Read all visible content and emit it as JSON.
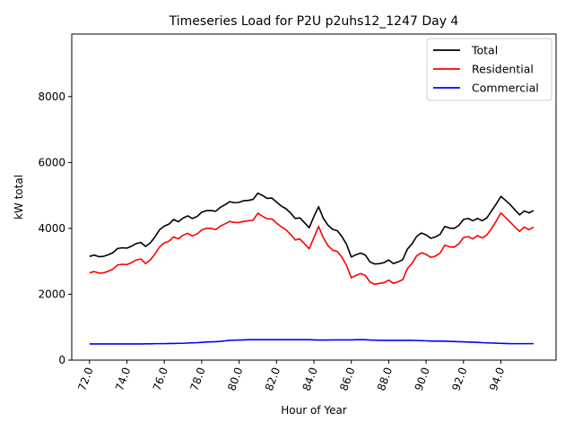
{
  "chart_data": {
    "type": "line",
    "title": "Timeseries Load for P2U p2uhs12_1247  Day 4",
    "xlabel": "Hour of Year",
    "ylabel": "kW total",
    "xlim": [
      71.05,
      96.95
    ],
    "ylim": [
      0,
      9900
    ],
    "xticks": [
      72,
      74,
      76,
      78,
      80,
      82,
      84,
      86,
      88,
      90,
      92,
      94
    ],
    "xtick_labels": [
      "72.0",
      "74.0",
      "76.0",
      "78.0",
      "80.0",
      "82.0",
      "84.0",
      "86.0",
      "88.0",
      "90.0",
      "92.0",
      "94.0"
    ],
    "yticks": [
      0,
      2000,
      4000,
      6000,
      8000
    ],
    "ytick_labels": [
      "0",
      "2000",
      "4000",
      "6000",
      "8000"
    ],
    "grid": false,
    "legend_position": "top-right",
    "x_start": 72.0,
    "x_step": 0.25,
    "series": [
      {
        "name": "Total",
        "color": "#000000",
        "values": [
          3150,
          3190,
          3140,
          3150,
          3200,
          3260,
          3390,
          3410,
          3400,
          3460,
          3540,
          3570,
          3450,
          3560,
          3740,
          3960,
          4070,
          4130,
          4270,
          4200,
          4310,
          4380,
          4300,
          4360,
          4490,
          4540,
          4540,
          4520,
          4640,
          4720,
          4810,
          4780,
          4790,
          4840,
          4850,
          4880,
          5070,
          5000,
          4910,
          4920,
          4800,
          4680,
          4600,
          4470,
          4300,
          4320,
          4170,
          4020,
          4360,
          4660,
          4310,
          4100,
          3970,
          3930,
          3750,
          3510,
          3130,
          3200,
          3250,
          3190,
          2980,
          2920,
          2930,
          2960,
          3040,
          2930,
          2980,
          3050,
          3370,
          3530,
          3760,
          3860,
          3800,
          3700,
          3740,
          3820,
          4060,
          4010,
          4000,
          4090,
          4270,
          4300,
          4230,
          4300,
          4230,
          4320,
          4530,
          4740,
          4970,
          4850,
          4720,
          4560,
          4410,
          4530,
          4470,
          4540
        ]
      },
      {
        "name": "Residential",
        "color": "#ff0000",
        "values": [
          2650,
          2690,
          2640,
          2650,
          2700,
          2760,
          2890,
          2910,
          2900,
          2960,
          3040,
          3070,
          2930,
          3040,
          3220,
          3440,
          3560,
          3610,
          3740,
          3680,
          3790,
          3850,
          3770,
          3830,
          3950,
          4000,
          4000,
          3960,
          4070,
          4140,
          4210,
          4180,
          4180,
          4210,
          4230,
          4250,
          4460,
          4370,
          4290,
          4290,
          4160,
          4050,
          3960,
          3820,
          3650,
          3680,
          3530,
          3380,
          3720,
          4060,
          3720,
          3480,
          3340,
          3300,
          3120,
          2870,
          2500,
          2570,
          2630,
          2570,
          2370,
          2300,
          2330,
          2350,
          2430,
          2330,
          2380,
          2440,
          2780,
          2940,
          3170,
          3260,
          3210,
          3120,
          3160,
          3250,
          3490,
          3440,
          3430,
          3530,
          3720,
          3750,
          3680,
          3780,
          3710,
          3800,
          4000,
          4220,
          4470,
          4330,
          4190,
          4040,
          3910,
          4040,
          3960,
          4040
        ]
      },
      {
        "name": "Commercial",
        "color": "#0000ff",
        "values": [
          490,
          490,
          490,
          490,
          490,
          490,
          490,
          490,
          490,
          490,
          490,
          490,
          495,
          495,
          500,
          500,
          500,
          505,
          505,
          510,
          510,
          520,
          525,
          530,
          540,
          550,
          555,
          560,
          570,
          585,
          600,
          605,
          610,
          615,
          620,
          620,
          620,
          620,
          620,
          620,
          620,
          620,
          620,
          620,
          620,
          620,
          620,
          620,
          615,
          610,
          610,
          610,
          615,
          615,
          615,
          615,
          615,
          620,
          620,
          620,
          610,
          605,
          600,
          600,
          600,
          600,
          600,
          600,
          600,
          600,
          595,
          590,
          585,
          580,
          575,
          575,
          575,
          570,
          565,
          560,
          555,
          550,
          545,
          540,
          530,
          525,
          520,
          515,
          510,
          505,
          500,
          500,
          500,
          500,
          500,
          500
        ]
      }
    ]
  }
}
